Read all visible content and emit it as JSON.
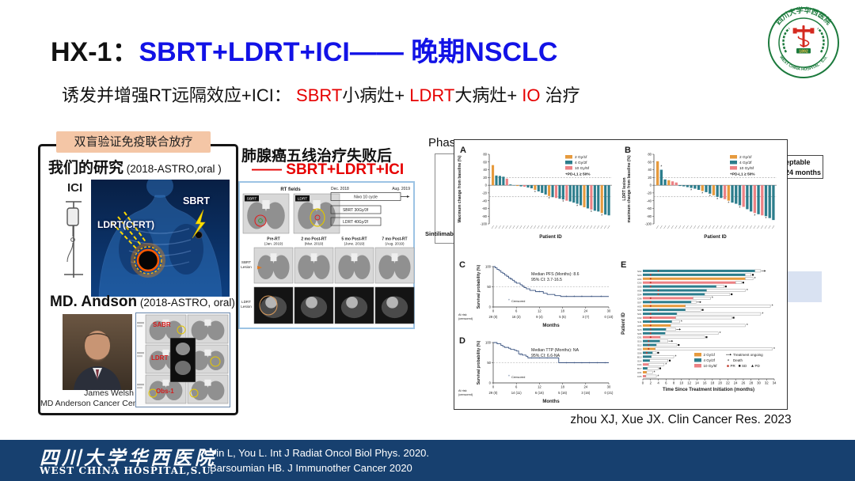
{
  "slide": {
    "title_prefix": "HX-1：",
    "title_main": "SBRT+LDRT+ICI—— 晚期NSCLC",
    "subtitle": {
      "lead": "诱发并增强RT远隔效应+ICI： ",
      "s1": "SBRT",
      "s1b": "小病灶+ ",
      "s2": "LDRT",
      "s2b": "大病灶+ ",
      "s3": "IO",
      "s3b": " 治疗"
    }
  },
  "logo": {
    "top": "四川大学华西医院",
    "bottom": "WEST CHINA HOSPITAL · S.U.",
    "year": "1892"
  },
  "left_panel": {
    "tag": "双盲验证免疫联合放疗",
    "our_study": "我们的研究",
    "our_study_ref": " (2018-ASTRO,oral )",
    "ici_label": "ICI",
    "ldrt_label": "LDRT(CFRT)",
    "sbrt_label": "SBRT",
    "md_heading": "MD. Andson",
    "md_ref": " (2018-ASTRO, oral)",
    "person_name": "James Welsh",
    "person_affiliation": "MD Anderson Cancer Center",
    "ct": {
      "sabr": "SABR",
      "ldrt": "LDRT",
      "obs": "Obs-1"
    }
  },
  "middle_panel": {
    "title_line1": "肺腺癌五线治疗失败后",
    "title_line2": "—— SBRT+LDRT+ICI",
    "figure": {
      "rt_fields": "RT fields",
      "sbrt_thumb_label": "SBRT",
      "ldrt_thumb_label": "LDRT",
      "date_start": "Dec. 2018",
      "date_end": "Aug. 2019",
      "nivo": "Nivo 10 cycle",
      "sbrt_dose": "SBRT 30Gy/3f",
      "ldrt_dose": "LDRT 40Gy/2f",
      "columns": [
        {
          "t": "Pre-RT",
          "d": "(Jan. 2019)"
        },
        {
          "t": "2 mo Post-RT",
          "d": "(Mar. 2019)"
        },
        {
          "t": "5 mo Post-RT",
          "d": "(June. 2019)"
        },
        {
          "t": "7 mo Post-RT",
          "d": "(Aug. 2019)"
        }
      ],
      "row1_l1": "SBRT",
      "row1_l2": "Lesion",
      "row2_l1": "LDRT",
      "row2_l2": "Lesion"
    }
  },
  "right_panel": {
    "phase_fragment": "Phase",
    "sintilimab_fragment": "Sintilimab",
    "clipped_line1": "eptable",
    "clipped_line2": "24 months",
    "citation": "zhou XJ, Xue JX. Clin Cancer Res. 2023"
  },
  "footer": {
    "logo_cn": "四川大学华西医院",
    "logo_en": "WEST CHINA HOSPITAL,S.U.",
    "ref1": "Yin L, You L. Int J Radiat Oncol Biol Phys. 2020.",
    "ref2": "Barsoumian  HB. J Immunother   Cancer 2020"
  },
  "colors": {
    "o": "#E69A3D",
    "t": "#2C7D8C",
    "p": "#EC8184",
    "km": "#3A5380",
    "navy": "#17406F",
    "blue_accent": "#1212E6",
    "red_accent": "#E60000",
    "tag_bg": "#F4C6A6"
  },
  "chart_data": [
    {
      "panel": "A",
      "type": "bar",
      "ylabel_lines": [
        "Maximum change from baseline (%)"
      ],
      "xlabel": "Patient ID",
      "ylim": [
        -100,
        80
      ],
      "ref_lines": [
        20,
        -30
      ],
      "grid": false,
      "legend": [
        "2 Gy/1f",
        "4 Gy/2f",
        "10 Gy/5f",
        "+PD-L1 ≥ 50%"
      ],
      "legend_position": "top-right",
      "bars": [
        [
          52,
          "o"
        ],
        [
          25,
          "t"
        ],
        [
          24,
          "t"
        ],
        [
          22,
          "t"
        ],
        [
          17,
          "p"
        ],
        [
          2,
          "t"
        ],
        [
          -1,
          "t"
        ],
        [
          -2,
          "o"
        ],
        [
          -3,
          "t"
        ],
        [
          -4,
          "p"
        ],
        [
          -6,
          "t"
        ],
        [
          -8,
          "t"
        ],
        [
          -12,
          "o",
          1
        ],
        [
          -16,
          "t"
        ],
        [
          -20,
          "t"
        ],
        [
          -24,
          "t"
        ],
        [
          -28,
          "o",
          1
        ],
        [
          -31,
          "t"
        ],
        [
          -33,
          "p"
        ],
        [
          -35,
          "t"
        ],
        [
          -37,
          "t",
          1
        ],
        [
          -40,
          "p"
        ],
        [
          -42,
          "t"
        ],
        [
          -45,
          "t"
        ],
        [
          -48,
          "t",
          1
        ],
        [
          -52,
          "t"
        ],
        [
          -57,
          "o"
        ],
        [
          -60,
          "t"
        ],
        [
          -63,
          "p",
          1
        ],
        [
          -66,
          "t"
        ],
        [
          -68,
          "t"
        ],
        [
          -72,
          "o",
          1
        ],
        [
          -76,
          "t"
        ],
        [
          -78,
          "t"
        ]
      ]
    },
    {
      "panel": "B",
      "type": "bar",
      "ylabel_lines": [
        "LDRT lesion",
        "maximum change from baseline (%)"
      ],
      "xlabel": "Patient ID",
      "ylim": [
        -100,
        80
      ],
      "ref_lines": [
        20,
        -30
      ],
      "grid": false,
      "legend": [
        "2 Gy/1f",
        "4 Gy/2f",
        "10 Gy/5f",
        "+PD-L1 ≥ 50%"
      ],
      "legend_position": "top-right",
      "bars": [
        [
          62,
          "o"
        ],
        [
          40,
          "t",
          1
        ],
        [
          15,
          "t"
        ],
        [
          13,
          "o"
        ],
        [
          10,
          "p"
        ],
        [
          7,
          "p"
        ],
        [
          -2,
          "t"
        ],
        [
          -3,
          "t"
        ],
        [
          -5,
          "t"
        ],
        [
          -7,
          "t",
          1
        ],
        [
          -9,
          "t"
        ],
        [
          -12,
          "t"
        ],
        [
          -15,
          "o",
          1
        ],
        [
          -18,
          "t"
        ],
        [
          -22,
          "t",
          1
        ],
        [
          -26,
          "o"
        ],
        [
          -30,
          "t",
          1
        ],
        [
          -33,
          "t"
        ],
        [
          -36,
          "p"
        ],
        [
          -40,
          "o",
          1
        ],
        [
          -45,
          "t"
        ],
        [
          -48,
          "t"
        ],
        [
          -52,
          "t",
          1
        ],
        [
          -56,
          "p"
        ],
        [
          -62,
          "t"
        ],
        [
          -68,
          "t"
        ],
        [
          -72,
          "p",
          1
        ],
        [
          -75,
          "t"
        ],
        [
          -78,
          "p"
        ],
        [
          -80,
          "t",
          1
        ],
        [
          -85,
          "t"
        ],
        [
          -90,
          "t"
        ]
      ]
    },
    {
      "panel": "C",
      "type": "line",
      "ylabel": "Survival probability (%)",
      "xlabel": "Months",
      "ylim": [
        0,
        100
      ],
      "x_ticks": [
        0,
        6,
        12,
        18,
        24,
        30
      ],
      "annotation": [
        "Median PFS (Months): 8.6",
        "95% CI: 3.7-16.5"
      ],
      "censored_label": "Censored",
      "at_risk_label": [
        "At risk",
        "(censored)"
      ],
      "at_risk": [
        "29 (0)",
        "16 (3)",
        "9 (4)",
        "5 (5)",
        "3 (7)",
        "0 (10)"
      ],
      "points": [
        [
          0,
          100
        ],
        [
          0.5,
          97
        ],
        [
          1,
          93
        ],
        [
          1.5,
          90
        ],
        [
          2,
          86
        ],
        [
          2.5,
          83
        ],
        [
          3,
          79
        ],
        [
          3.5,
          76
        ],
        [
          4,
          72
        ],
        [
          4.5,
          69
        ],
        [
          5,
          66
        ],
        [
          5.5,
          62
        ],
        [
          6,
          59
        ],
        [
          7,
          55
        ],
        [
          7.5,
          52
        ],
        [
          8,
          48
        ],
        [
          8.6,
          45
        ],
        [
          9.5,
          41
        ],
        [
          11,
          38
        ],
        [
          13,
          34
        ],
        [
          14,
          31
        ],
        [
          16,
          28
        ],
        [
          17.5,
          26
        ],
        [
          30,
          26
        ]
      ],
      "censor": [
        [
          4.7,
          69
        ],
        [
          12,
          38
        ],
        [
          19,
          26
        ],
        [
          21,
          26
        ],
        [
          23,
          26
        ],
        [
          25.5,
          26
        ],
        [
          28,
          26
        ]
      ]
    },
    {
      "panel": "D",
      "type": "line",
      "ylabel": "Survival probability (%)",
      "xlabel": "Months",
      "ylim": [
        0,
        100
      ],
      "x_ticks": [
        0,
        6,
        12,
        18,
        24,
        30
      ],
      "annotation": [
        "Median TTP (Months): NA",
        "95% CI: 6.6-NA"
      ],
      "censored_label": "Censored",
      "at_risk_label": [
        "At risk",
        "(censored)"
      ],
      "at_risk": [
        "29 (0)",
        "14 (11)",
        "6 (16)",
        "5 (16)",
        "3 (16)",
        "0 (21)"
      ],
      "points": [
        [
          0,
          100
        ],
        [
          1,
          97
        ],
        [
          2,
          93
        ],
        [
          2.5,
          90
        ],
        [
          3,
          88
        ],
        [
          4,
          86
        ],
        [
          4.5,
          83
        ],
        [
          5.5,
          81
        ],
        [
          6,
          79
        ],
        [
          6.6,
          72
        ],
        [
          7.5,
          69
        ],
        [
          8.5,
          66
        ],
        [
          9,
          62
        ],
        [
          17,
          62
        ],
        [
          17.01,
          50
        ],
        [
          30,
          50
        ]
      ],
      "censor": [
        [
          7,
          69
        ],
        [
          10,
          62
        ],
        [
          12,
          62
        ],
        [
          14,
          62
        ],
        [
          19,
          50
        ],
        [
          21,
          50
        ],
        [
          23,
          50
        ],
        [
          25,
          50
        ],
        [
          27,
          50
        ],
        [
          29,
          50
        ]
      ]
    },
    {
      "panel": "E",
      "type": "bar",
      "orientation": "horizontal",
      "ylabel": "Patient ID",
      "xlabel": "Time Since Treatment Initiation (months)",
      "xlim": [
        0,
        34
      ],
      "x_tick_step": 2,
      "legend_groups": [
        "2 Gy/1f",
        "4 Gy/2f",
        "10 Gy/5f"
      ],
      "legend_markers": [
        "Treatment ongoing",
        "Death",
        "PR",
        "SD",
        "PD"
      ],
      "rows": [
        [
          "S02",
          "t",
          29,
          30.5,
          "pr",
          4,
          "arrow"
        ],
        [
          "S03",
          "t",
          26.5,
          28,
          "pr",
          2,
          "sd"
        ],
        [
          "A04",
          "o",
          26.5,
          28.5,
          "pr",
          2,
          "star"
        ],
        [
          "C03",
          "p",
          24,
          25.5,
          "pr",
          2,
          "sd"
        ],
        [
          "S05",
          "t",
          19,
          21,
          "pr",
          2,
          "sd"
        ],
        [
          "A05",
          "t",
          16.5,
          26.5,
          "pr",
          4,
          "star"
        ],
        [
          "S04",
          "t",
          16,
          22.5,
          "pr",
          4,
          "sd"
        ],
        [
          "C06",
          "p",
          13,
          17.5,
          "pr",
          2,
          "star"
        ],
        [
          "S07",
          "t",
          12.5,
          13.8,
          "pr",
          2,
          "arrow"
        ],
        [
          "A02",
          "o",
          11,
          33,
          "pr",
          2,
          "star"
        ],
        [
          "S09",
          "t",
          11,
          15,
          "pr",
          4,
          "sd"
        ],
        [
          "S01",
          "t",
          8.8,
          30.5,
          "pr",
          2,
          "star"
        ],
        [
          "C02",
          "p",
          8.5,
          23,
          "pr",
          2,
          "sd"
        ],
        [
          "S11",
          "t",
          7.5,
          9.5,
          "pr",
          2,
          "star"
        ],
        [
          "A06",
          "o",
          7.2,
          26.5,
          "pr",
          2,
          "star"
        ],
        [
          "S15",
          "t",
          6,
          8.5,
          "pr",
          2,
          "arrow"
        ],
        [
          "S06",
          "t",
          5.8,
          19.5,
          "pr",
          2,
          "star"
        ],
        [
          "C01",
          "p",
          4.5,
          16,
          "pr",
          2,
          "sd"
        ],
        [
          "S16",
          "t",
          4.4,
          6.5,
          "pr",
          1.5,
          "arrow"
        ],
        [
          "S12",
          "t",
          3.5,
          8.8,
          "pr",
          1.5,
          "sd"
        ],
        [
          "A03",
          "o",
          3.2,
          33.5,
          "pr",
          1.5,
          "star"
        ],
        [
          "S08",
          "t",
          2.5,
          3.5,
          "pr",
          1,
          "sd"
        ],
        [
          "B13",
          "t",
          2.2,
          8,
          null,
          0,
          "star"
        ],
        [
          "S14",
          "t",
          1.8,
          6.5,
          null,
          0,
          "sd"
        ],
        [
          "C04",
          "p",
          1.5,
          5.5,
          null,
          0,
          "star"
        ],
        [
          "B17",
          "t",
          1.2,
          4,
          null,
          0,
          "sd"
        ],
        [
          "A01",
          "o",
          1,
          2.5,
          null,
          0,
          "star"
        ],
        [
          "C05",
          "p",
          0.8,
          3.5,
          null,
          0,
          "star"
        ]
      ]
    }
  ]
}
